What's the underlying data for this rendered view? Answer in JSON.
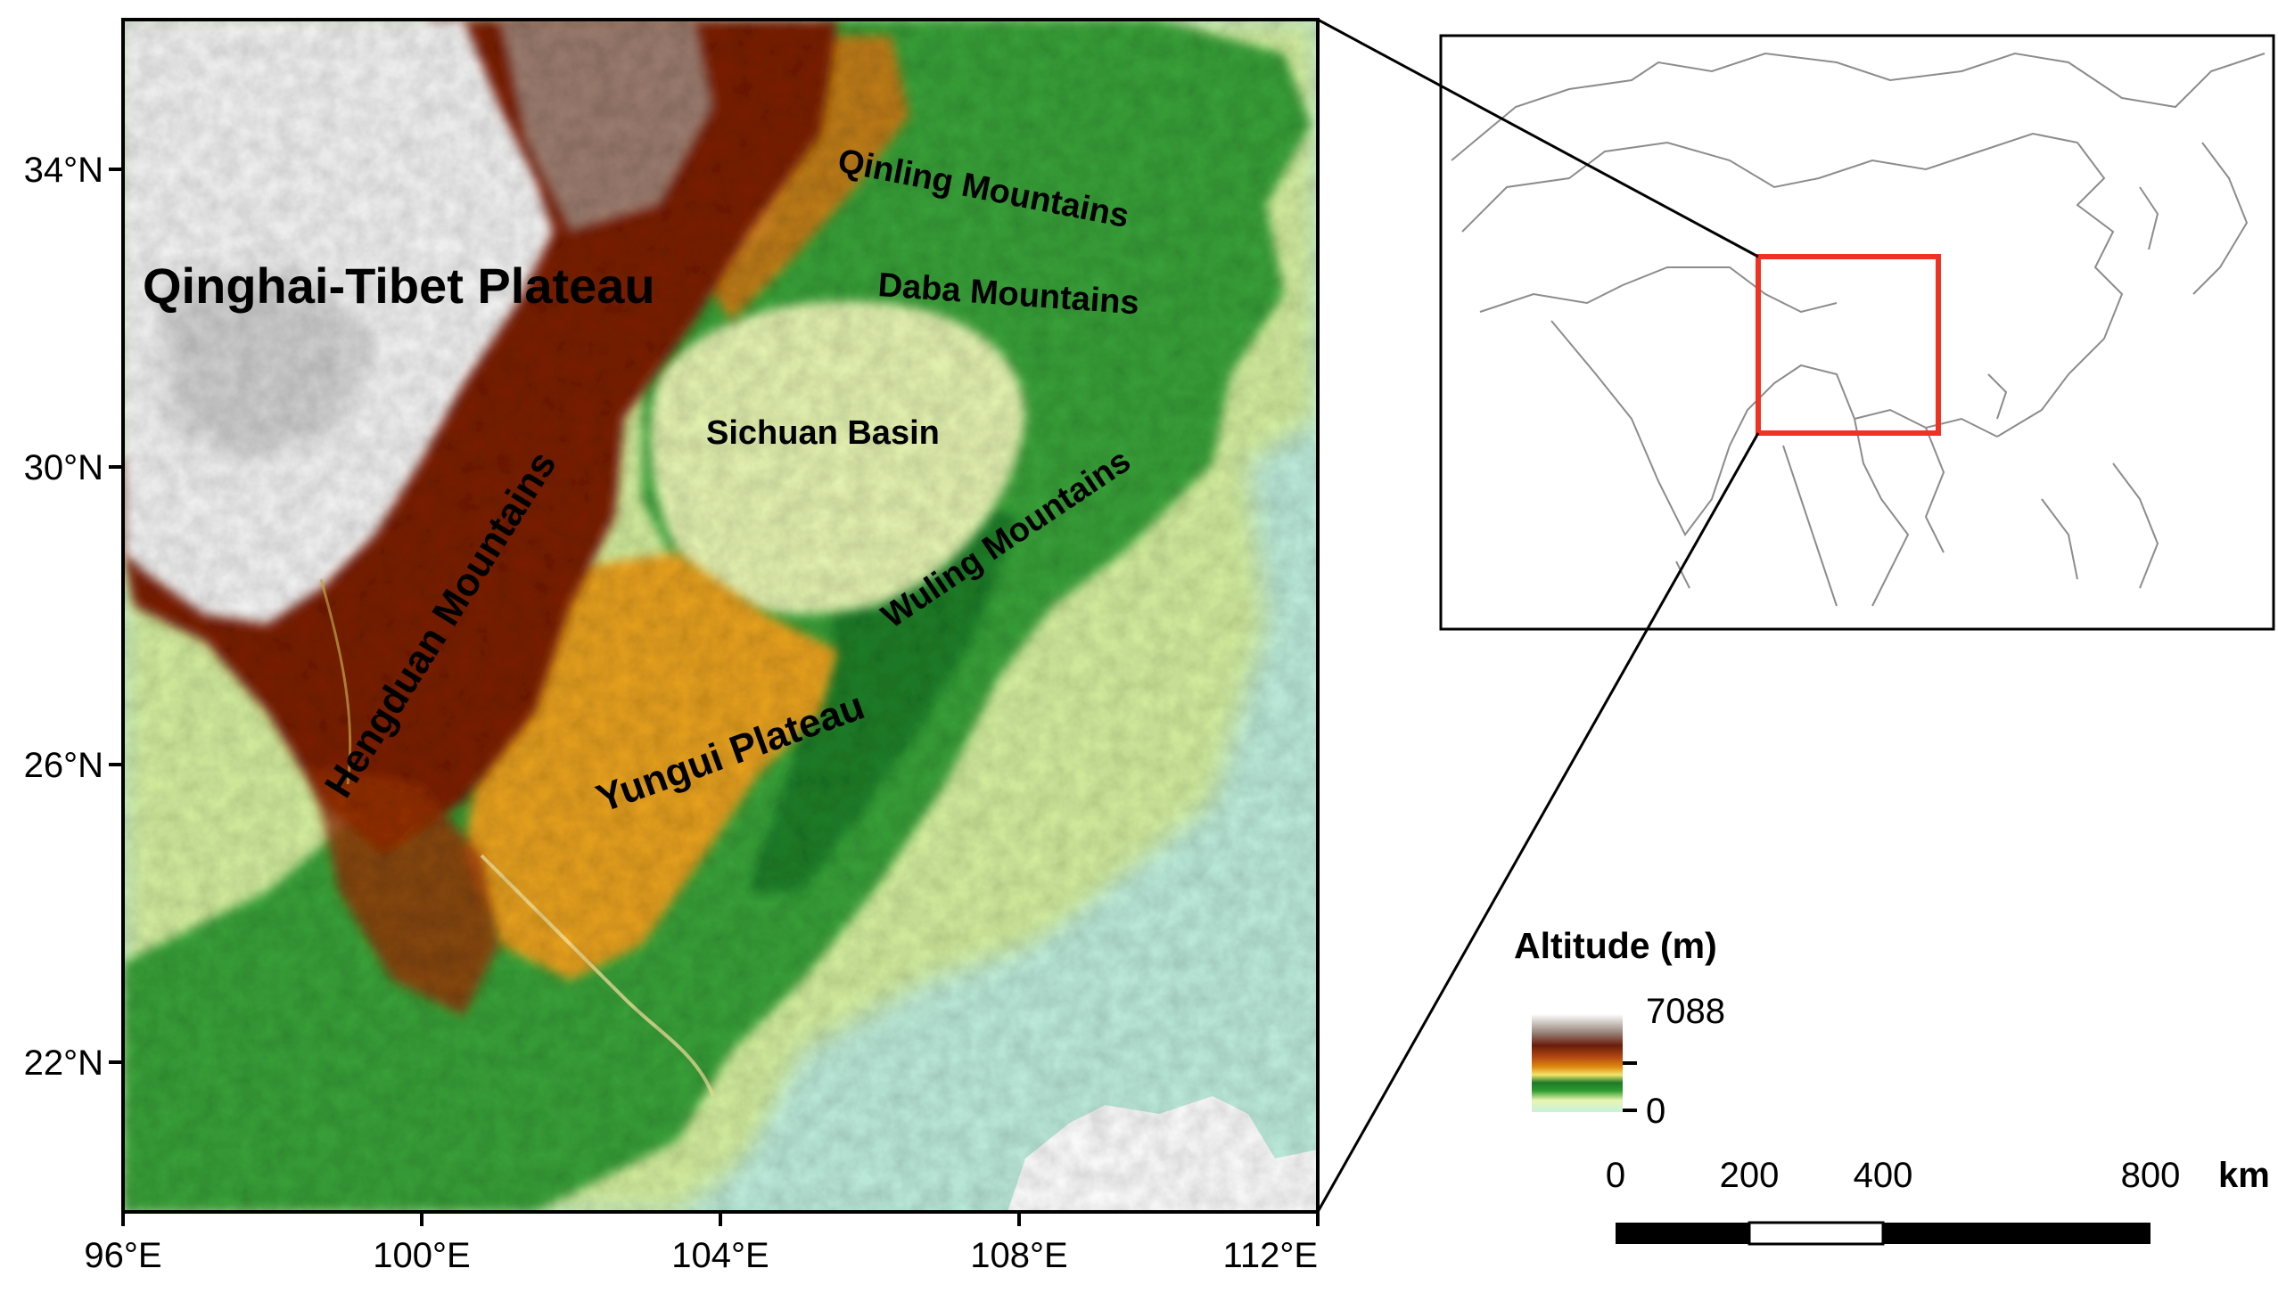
{
  "main_map": {
    "lat_ticks": [
      "34°N",
      "30°N",
      "26°N",
      "22°N"
    ],
    "lon_ticks": [
      "96°E",
      "100°E",
      "104°E",
      "108°E",
      "112°E"
    ],
    "regions": [
      {
        "key": "qinghai",
        "label": "Qinghai-Tibet Plateau"
      },
      {
        "key": "qinling",
        "label": "Qinling Mountains"
      },
      {
        "key": "daba",
        "label": "Daba Mountains"
      },
      {
        "key": "sichuan",
        "label": "Sichuan Basin"
      },
      {
        "key": "hengduan",
        "label": "Hengduan Mountains"
      },
      {
        "key": "wuling",
        "label": "Wuling Mountains"
      },
      {
        "key": "yungui",
        "label": "Yungui Plateau"
      }
    ],
    "colors": {
      "plateau_white": "#f2f2f2",
      "brown": "#7a1f0a",
      "orange": "#e0860f",
      "yellow": "#f3e78a",
      "green": "#2f9a30",
      "dark_green": "#1d7a2a",
      "light_green": "#bfe89a",
      "lowland_cyan": "#bfeede"
    }
  },
  "legend": {
    "title": "Altitude (m)",
    "max_label": "7088",
    "min_label": "0",
    "max_value": 7088,
    "min_value": 0
  },
  "scale_bar": {
    "ticks": [
      "0",
      "200",
      "400",
      "800"
    ],
    "unit": "km"
  },
  "inset": {
    "study_area_color": "#ee3322",
    "outline_color": "#8c8c8c"
  }
}
